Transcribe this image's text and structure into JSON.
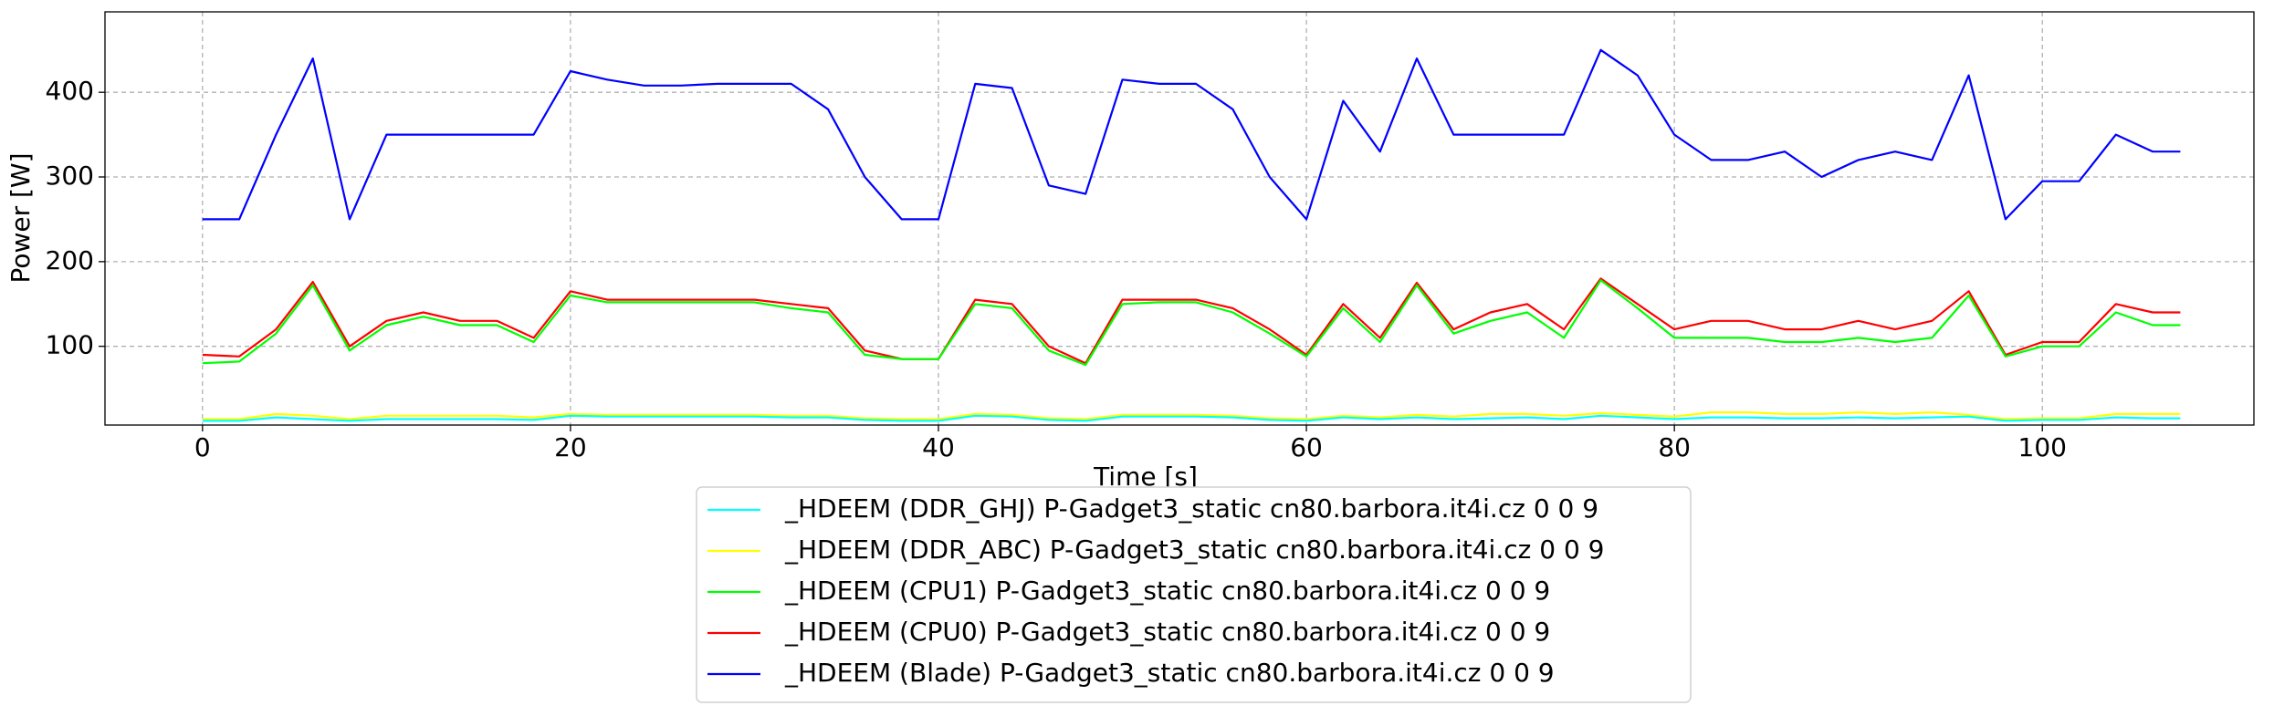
{
  "chart_data": {
    "type": "line",
    "x_label": "Time [s]",
    "y_label": "Power [W]",
    "xlim": [
      -5.3,
      111.5
    ],
    "ylim": [
      7,
      495
    ],
    "xticks": [
      0,
      20,
      40,
      60,
      80,
      100
    ],
    "yticks": [
      100,
      200,
      300,
      400
    ],
    "grid": true,
    "legend": "below",
    "x": [
      0,
      2,
      4,
      6,
      8,
      10,
      12,
      14,
      16,
      18,
      20,
      22,
      24,
      26,
      28,
      30,
      32,
      34,
      36,
      38,
      40,
      42,
      44,
      46,
      48,
      50,
      52,
      54,
      56,
      58,
      60,
      62,
      64,
      66,
      68,
      70,
      72,
      74,
      76,
      78,
      80,
      82,
      84,
      86,
      88,
      90,
      92,
      94,
      96,
      98,
      100,
      102,
      104,
      106,
      107.5
    ],
    "series": [
      {
        "name": "_HDEEM (DDR_GHJ) P-Gadget3_static cn80.barbora.it4i.cz 0 0 9",
        "color": "#00ffff",
        "values": [
          12,
          12,
          16,
          14,
          12,
          14,
          14,
          14,
          14,
          13,
          18,
          17,
          17,
          17,
          17,
          17,
          16,
          16,
          13,
          12,
          12,
          18,
          17,
          13,
          12,
          17,
          17,
          17,
          16,
          13,
          12,
          16,
          14,
          16,
          14,
          15,
          16,
          14,
          18,
          16,
          14,
          16,
          16,
          15,
          15,
          16,
          15,
          16,
          17,
          12,
          13,
          13,
          16,
          15,
          15
        ]
      },
      {
        "name": "_HDEEM (DDR_ABC) P-Gadget3_static cn80.barbora.it4i.cz 0 0 9",
        "color": "#ffff00",
        "values": [
          14,
          14,
          20,
          18,
          14,
          18,
          18,
          18,
          18,
          16,
          20,
          19,
          19,
          19,
          19,
          19,
          18,
          18,
          15,
          14,
          14,
          20,
          19,
          15,
          14,
          19,
          19,
          19,
          18,
          15,
          14,
          18,
          16,
          19,
          17,
          20,
          20,
          18,
          21,
          19,
          17,
          22,
          22,
          20,
          20,
          22,
          20,
          22,
          19,
          14,
          15,
          15,
          20,
          20,
          20
        ]
      },
      {
        "name": "_HDEEM (CPU1) P-Gadget3_static cn80.barbora.it4i.cz 0 0 9",
        "color": "#00ff00",
        "values": [
          80,
          82,
          115,
          172,
          95,
          125,
          135,
          125,
          125,
          105,
          160,
          152,
          152,
          152,
          152,
          152,
          145,
          140,
          90,
          85,
          85,
          150,
          145,
          95,
          78,
          150,
          152,
          152,
          140,
          115,
          88,
          145,
          105,
          172,
          115,
          130,
          140,
          110,
          178,
          145,
          110,
          110,
          110,
          105,
          105,
          110,
          105,
          110,
          160,
          88,
          100,
          100,
          140,
          125,
          125
        ]
      },
      {
        "name": "_HDEEM (CPU0) P-Gadget3_static cn80.barbora.it4i.cz 0 0 9",
        "color": "#ff0000",
        "values": [
          90,
          88,
          120,
          176,
          100,
          130,
          140,
          130,
          130,
          110,
          165,
          155,
          155,
          155,
          155,
          155,
          150,
          145,
          95,
          85,
          85,
          155,
          150,
          100,
          80,
          155,
          155,
          155,
          145,
          120,
          90,
          150,
          110,
          175,
          120,
          140,
          150,
          120,
          180,
          150,
          120,
          130,
          130,
          120,
          120,
          130,
          120,
          130,
          165,
          90,
          105,
          105,
          150,
          140,
          140
        ]
      },
      {
        "name": "_HDEEM (Blade) P-Gadget3_static cn80.barbora.it4i.cz 0 0 9",
        "color": "#0000ff",
        "values": [
          250,
          250,
          350,
          440,
          250,
          350,
          350,
          350,
          350,
          350,
          425,
          415,
          408,
          408,
          410,
          410,
          410,
          380,
          300,
          250,
          250,
          410,
          405,
          290,
          280,
          415,
          410,
          410,
          380,
          300,
          250,
          390,
          330,
          440,
          350,
          350,
          350,
          350,
          450,
          420,
          350,
          320,
          320,
          330,
          300,
          320,
          330,
          320,
          420,
          250,
          295,
          295,
          350,
          330,
          330
        ]
      }
    ]
  }
}
